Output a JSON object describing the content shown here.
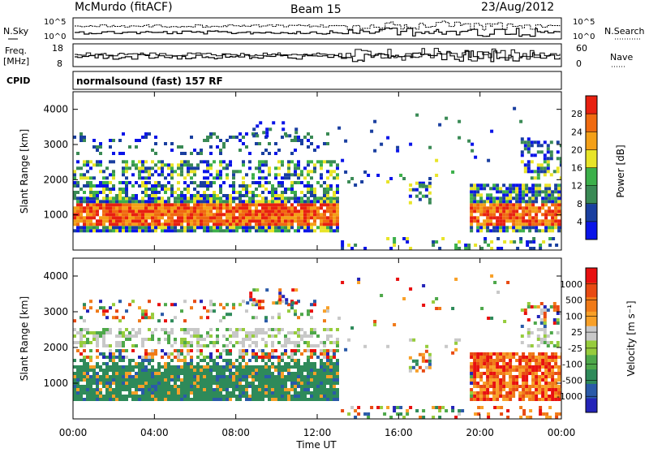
{
  "header": {
    "station": "McMurdo (fitACF)",
    "beam": "Beam 15",
    "date": "23/Aug/2012"
  },
  "aux_labels": {
    "nsky": "N.Sky",
    "nsky_ticks": [
      "10^5",
      "10^0"
    ],
    "nsearch": "N.Search",
    "nsearch_ticks": [
      "10^5",
      "10^0"
    ],
    "freq": "Freq.",
    "freq_unit": "[MHz]",
    "freq_ticks": [
      "18",
      "8"
    ],
    "nave": "Nave",
    "nave_ticks": [
      "60",
      "0"
    ],
    "cpid": "CPID",
    "cpid_value": "normalsound (fast) 157 RF"
  },
  "colors": {
    "power": [
      "#0a14e8",
      "#1a3fa0",
      "#3a8a55",
      "#3cb04a",
      "#e8e428",
      "#f4a018",
      "#f06a10",
      "#e82010"
    ],
    "velocity": [
      "#2424b8",
      "#2a5aa8",
      "#2e8a5a",
      "#4ea84a",
      "#96cc3c",
      "#c8c8c8",
      "#f8a028",
      "#f07a18",
      "#e84a12",
      "#e81010"
    ]
  },
  "chart_data": [
    {
      "type": "heatmap",
      "title": "Power",
      "ylabel": "Slant Range [km]",
      "xlabel": "Time UT",
      "x_ticks": [
        "00:00",
        "04:00",
        "08:00",
        "12:00",
        "16:00",
        "20:00",
        "00:00"
      ],
      "y_ticks": [
        "1000",
        "2000",
        "3000",
        "4000"
      ],
      "ylim": [
        0,
        4500
      ],
      "xlim_hours": [
        0,
        24
      ],
      "colorbar": {
        "label": "Power [dB]",
        "ticks": [
          "28",
          "24",
          "20",
          "16",
          "12",
          "8",
          "4"
        ],
        "range": [
          0,
          32
        ]
      }
    },
    {
      "type": "heatmap",
      "title": "Velocity",
      "ylabel": "Slant Range [km]",
      "xlabel": "Time UT",
      "x_ticks": [
        "00:00",
        "04:00",
        "08:00",
        "12:00",
        "16:00",
        "20:00",
        "00:00"
      ],
      "y_ticks": [
        "1000",
        "2000",
        "3000",
        "4000"
      ],
      "ylim": [
        0,
        4500
      ],
      "xlim_hours": [
        0,
        24
      ],
      "colorbar": {
        "label": "Velocity [m s⁻¹]",
        "ticks": [
          "1000",
          "500",
          "100",
          "25",
          "-25",
          "-100",
          "-500",
          "-1000"
        ]
      }
    }
  ]
}
